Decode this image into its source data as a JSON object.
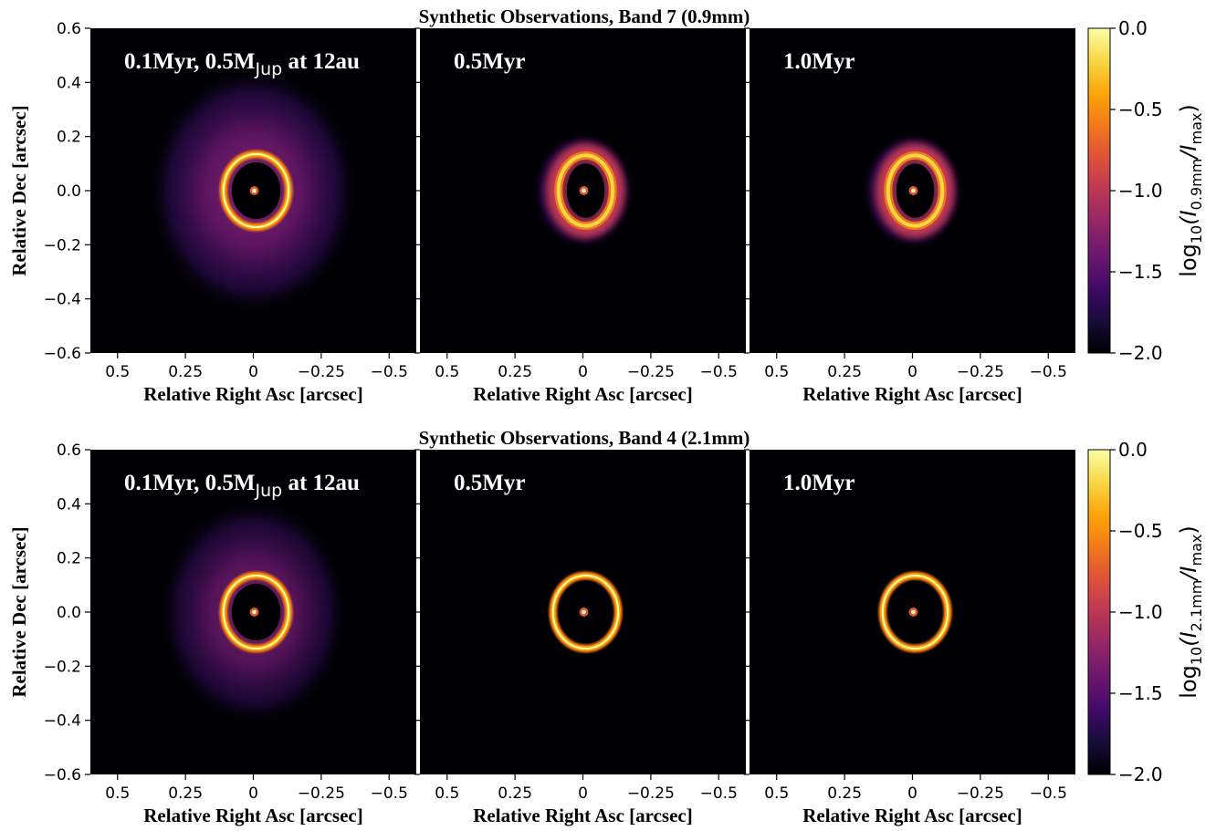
{
  "chart_data": [
    {
      "type": "heatmap",
      "title": "Synthetic Observations, Band 7 (0.9mm)",
      "ylabel": "Relative Dec [arcsec]",
      "colorbar": {
        "label_prefix": "log",
        "label_base_sub": "10",
        "label_open": "(I",
        "label_sub1": "0.9mm",
        "label_mid": "/I",
        "label_sub2": "max",
        "label_close": ")",
        "range": [
          -2.0,
          0.0
        ],
        "ticks": [
          0.0,
          -0.5,
          -1.0,
          -1.5,
          -2.0
        ],
        "tick_labels": [
          "0.0",
          "−0.5",
          "−1.0",
          "−1.5",
          "−2.0"
        ],
        "colormap": "inferno"
      },
      "panels": [
        {
          "label_main": "0.1Myr, 0.5M",
          "label_sub": "Jup",
          "label_tail": " at 12au",
          "xlabel": "Relative Right Asc [arcsec]",
          "halo": {
            "level": 0.42,
            "rx": 0.39,
            "ry": 0.46
          },
          "ring": {
            "radius_x": 0.12,
            "radius_y": 0.135,
            "level": 1.0,
            "sharp": true
          },
          "center_spot": true
        },
        {
          "label_main": "0.5Myr",
          "xlabel": "Relative Right Asc [arcsec]",
          "halo": {
            "level": 0.28,
            "rx": 0.19,
            "ry": 0.22
          },
          "ring": {
            "radius_x": 0.1,
            "radius_y": 0.13,
            "level": 1.0,
            "sharp": false
          },
          "center_spot": true
        },
        {
          "label_main": "1.0Myr",
          "xlabel": "Relative Right Asc [arcsec]",
          "halo": {
            "level": 0.3,
            "rx": 0.19,
            "ry": 0.22
          },
          "ring": {
            "radius_x": 0.1,
            "radius_y": 0.13,
            "level": 1.0,
            "sharp": false
          },
          "center_spot": true
        }
      ],
      "xlim": [
        0.6,
        -0.6
      ],
      "ylim": [
        -0.6,
        0.6
      ],
      "xticks": [
        0.5,
        0.25,
        0,
        -0.25,
        -0.5
      ],
      "xtick_labels": [
        "0.5",
        "0.25",
        "0",
        "−0.25",
        "−0.5"
      ],
      "yticks": [
        0.6,
        0.4,
        0.2,
        0.0,
        -0.2,
        -0.4,
        -0.6
      ],
      "ytick_labels": [
        "0.6",
        "0.4",
        "0.2",
        "0.0",
        "−0.2",
        "−0.4",
        "−0.6"
      ]
    },
    {
      "type": "heatmap",
      "title": "Synthetic Observations, Band 4 (2.1mm)",
      "ylabel": "Relative Dec [arcsec]",
      "colorbar": {
        "label_prefix": "log",
        "label_base_sub": "10",
        "label_open": "(I",
        "label_sub1": "2.1mm",
        "label_mid": "/I",
        "label_sub2": "max",
        "label_close": ")",
        "range": [
          -2.0,
          0.0
        ],
        "ticks": [
          0.0,
          -0.5,
          -1.0,
          -1.5,
          -2.0
        ],
        "tick_labels": [
          "0.0",
          "−0.5",
          "−1.0",
          "−1.5",
          "−2.0"
        ],
        "colormap": "inferno"
      },
      "panels": [
        {
          "label_main": "0.1Myr, 0.5M",
          "label_sub": "Jup",
          "label_tail": " at 12au",
          "xlabel": "Relative Right Asc [arcsec]",
          "halo": {
            "level": 0.38,
            "rx": 0.35,
            "ry": 0.42
          },
          "ring": {
            "radius_x": 0.12,
            "radius_y": 0.135,
            "level": 1.0,
            "sharp": true
          },
          "center_spot": true
        },
        {
          "label_main": "0.5Myr",
          "xlabel": "Relative Right Asc [arcsec]",
          "halo": {
            "level": 0.0,
            "rx": 0.1,
            "ry": 0.1
          },
          "ring": {
            "radius_x": 0.12,
            "radius_y": 0.135,
            "level": 1.0,
            "sharp": true
          },
          "center_spot": true
        },
        {
          "label_main": "1.0Myr",
          "xlabel": "Relative Right Asc [arcsec]",
          "halo": {
            "level": 0.0,
            "rx": 0.1,
            "ry": 0.1
          },
          "ring": {
            "radius_x": 0.12,
            "radius_y": 0.135,
            "level": 1.0,
            "sharp": true
          },
          "center_spot": true
        }
      ],
      "xlim": [
        0.6,
        -0.6
      ],
      "ylim": [
        -0.6,
        0.6
      ],
      "xticks": [
        0.5,
        0.25,
        0,
        -0.25,
        -0.5
      ],
      "xtick_labels": [
        "0.5",
        "0.25",
        "0",
        "−0.25",
        "−0.5"
      ],
      "yticks": [
        0.6,
        0.4,
        0.2,
        0.0,
        -0.2,
        -0.4,
        -0.6
      ],
      "ytick_labels": [
        "0.6",
        "0.4",
        "0.2",
        "0.0",
        "−0.2",
        "−0.4",
        "−0.6"
      ]
    }
  ]
}
